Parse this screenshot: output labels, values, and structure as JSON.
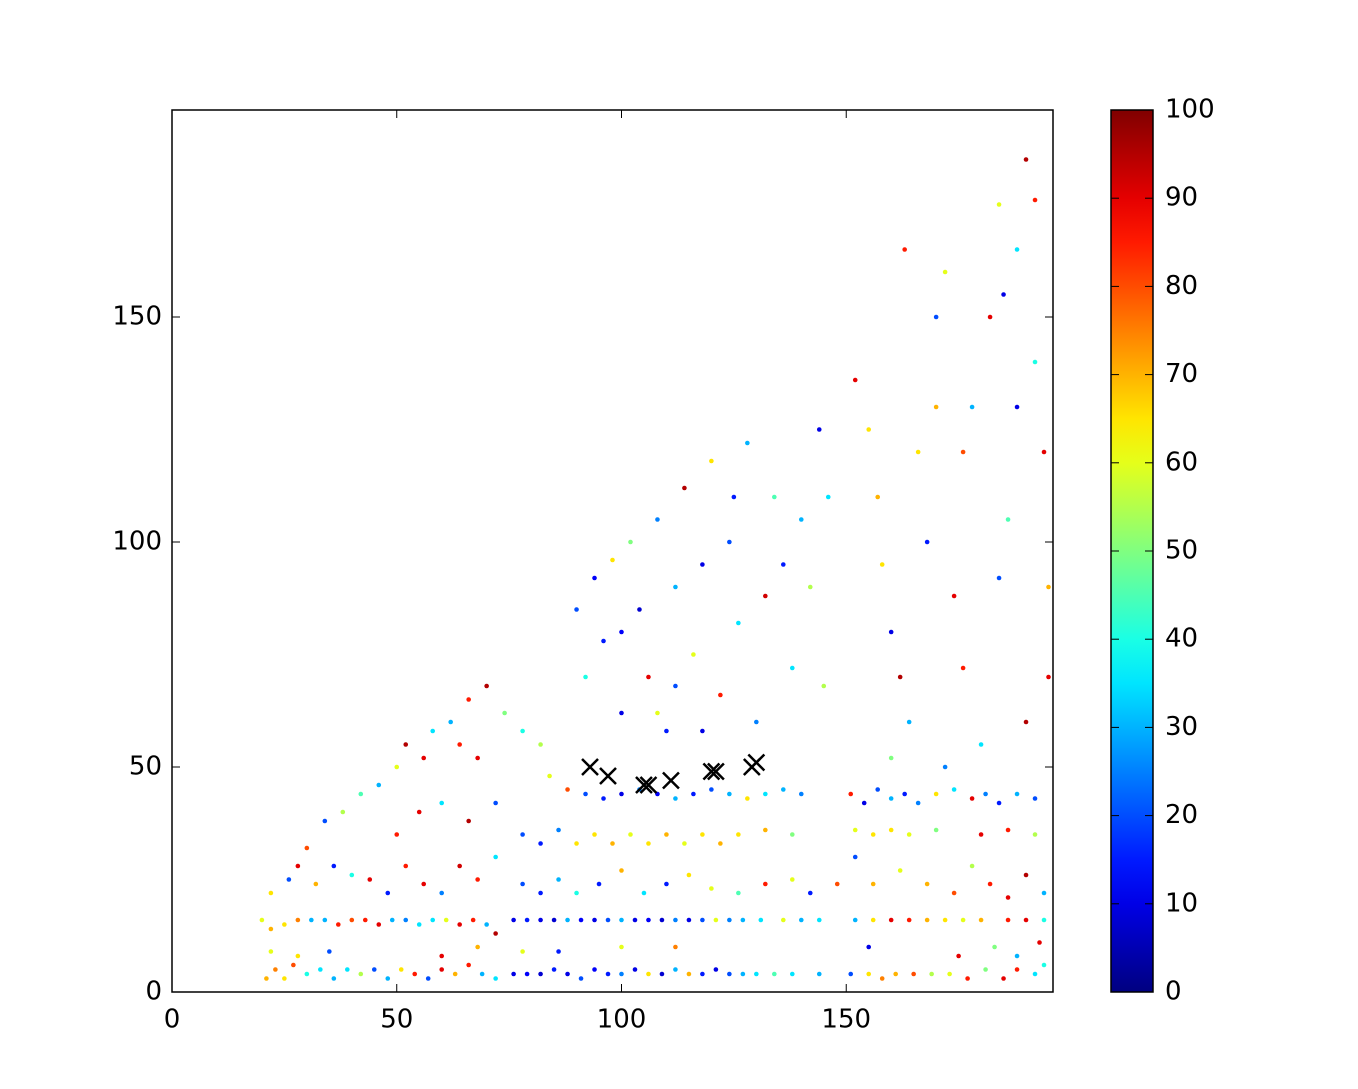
{
  "chart_data": {
    "type": "scatter",
    "colormap": "jet",
    "xlim": [
      0,
      196
    ],
    "ylim": [
      0,
      196
    ],
    "xticks": [
      0,
      50,
      100,
      150
    ],
    "yticks": [
      0,
      50,
      100,
      150
    ],
    "colorbar": {
      "clim": [
        0,
        100
      ],
      "ticks": [
        0,
        10,
        20,
        30,
        40,
        50,
        60,
        70,
        80,
        90,
        100
      ]
    },
    "x": [
      21,
      23,
      25,
      27,
      30,
      33,
      36,
      39,
      42,
      45,
      48,
      51,
      54,
      57,
      60,
      63,
      66,
      69,
      72,
      76,
      79,
      82,
      85,
      88,
      91,
      94,
      97,
      100,
      103,
      106,
      109,
      112,
      115,
      118,
      121,
      124,
      127,
      130,
      134,
      138,
      144,
      151,
      155,
      158,
      161,
      165,
      169,
      173,
      177,
      181,
      185,
      188,
      192,
      194,
      22,
      28,
      35,
      60,
      68,
      78,
      86,
      100,
      112,
      155,
      175,
      183,
      188,
      193,
      20,
      22,
      25,
      28,
      31,
      34,
      37,
      40,
      43,
      46,
      49,
      52,
      55,
      58,
      61,
      64,
      67,
      70,
      72,
      76,
      79,
      82,
      85,
      88,
      91,
      94,
      97,
      100,
      103,
      106,
      109,
      112,
      115,
      118,
      121,
      124,
      127,
      131,
      136,
      140,
      144,
      152,
      156,
      160,
      164,
      168,
      172,
      176,
      180,
      186,
      190,
      194,
      22,
      26,
      28,
      32,
      36,
      40,
      44,
      48,
      52,
      56,
      60,
      64,
      68,
      72,
      78,
      82,
      86,
      90,
      95,
      100,
      105,
      110,
      115,
      120,
      126,
      132,
      138,
      142,
      148,
      152,
      156,
      162,
      168,
      174,
      178,
      182,
      186,
      190,
      194,
      90,
      94,
      98,
      102,
      106,
      110,
      114,
      118,
      122,
      126,
      132,
      138,
      152,
      156,
      160,
      164,
      170,
      180,
      186,
      192,
      78,
      82,
      86,
      88,
      92,
      96,
      100,
      104,
      108,
      112,
      116,
      120,
      124,
      128,
      132,
      136,
      140,
      151,
      154,
      157,
      160,
      163,
      166,
      170,
      174,
      178,
      181,
      184,
      188,
      192,
      30,
      34,
      38,
      42,
      46,
      50,
      52,
      56,
      58,
      62,
      64,
      66,
      68,
      70,
      74,
      78,
      82,
      84,
      50,
      55,
      60,
      66,
      72,
      90,
      92,
      94,
      96,
      98,
      100,
      102,
      104,
      106,
      108,
      110,
      112,
      114,
      116,
      118,
      120,
      122,
      124,
      126,
      128,
      130,
      132,
      134,
      136,
      138,
      140,
      142,
      144,
      146,
      145,
      100,
      112,
      125,
      118,
      108,
      152,
      155,
      157,
      158,
      160,
      162,
      164,
      166,
      168,
      170,
      172,
      174,
      176,
      178,
      180,
      182,
      184,
      186,
      188,
      190,
      192,
      194,
      195,
      195,
      163,
      170,
      176,
      184,
      188,
      190,
      192,
      185,
      160,
      172
    ],
    "y": [
      3,
      5,
      3,
      6,
      4,
      5,
      3,
      5,
      4,
      5,
      3,
      5,
      4,
      3,
      5,
      4,
      6,
      4,
      3,
      4,
      4,
      4,
      5,
      4,
      3,
      5,
      4,
      4,
      5,
      4,
      4,
      5,
      4,
      4,
      5,
      4,
      4,
      4,
      4,
      4,
      4,
      4,
      4,
      3,
      4,
      4,
      4,
      4,
      3,
      5,
      3,
      5,
      4,
      6,
      9,
      8,
      9,
      8,
      10,
      9,
      9,
      10,
      10,
      10,
      8,
      10,
      8,
      11,
      16,
      14,
      15,
      16,
      16,
      16,
      15,
      16,
      16,
      15,
      16,
      16,
      15,
      16,
      16,
      15,
      16,
      15,
      13,
      16,
      16,
      16,
      16,
      16,
      16,
      16,
      16,
      16,
      16,
      16,
      16,
      16,
      16,
      16,
      16,
      16,
      16,
      16,
      16,
      16,
      16,
      16,
      16,
      16,
      16,
      16,
      16,
      16,
      16,
      16,
      16,
      16,
      22,
      25,
      28,
      24,
      28,
      26,
      25,
      22,
      28,
      24,
      22,
      28,
      25,
      30,
      24,
      22,
      25,
      22,
      24,
      27,
      22,
      24,
      26,
      23,
      22,
      24,
      25,
      22,
      24,
      30,
      24,
      27,
      24,
      22,
      28,
      24,
      21,
      26,
      22,
      33,
      35,
      33,
      35,
      33,
      35,
      33,
      35,
      33,
      35,
      36,
      35,
      36,
      35,
      36,
      35,
      36,
      35,
      36,
      35,
      35,
      33,
      36,
      45,
      44,
      43,
      44,
      45,
      44,
      43,
      44,
      45,
      44,
      43,
      44,
      45,
      44,
      44,
      42,
      45,
      43,
      44,
      42,
      44,
      45,
      43,
      44,
      42,
      44,
      43,
      32,
      38,
      40,
      44,
      46,
      50,
      55,
      52,
      58,
      60,
      55,
      65,
      52,
      68,
      62,
      58,
      55,
      48,
      35,
      40,
      42,
      38,
      42,
      85,
      70,
      92,
      78,
      96,
      62,
      100,
      85,
      70,
      105,
      58,
      90,
      112,
      75,
      95,
      118,
      66,
      100,
      82,
      122,
      60,
      88,
      110,
      95,
      72,
      105,
      90,
      125,
      110,
      68,
      80,
      68,
      110,
      58,
      62,
      136,
      125,
      110,
      95,
      80,
      70,
      60,
      120,
      100,
      150,
      160,
      88,
      72,
      130,
      55,
      150,
      175,
      105,
      165,
      185,
      140,
      120,
      90,
      70,
      165,
      130,
      120,
      92,
      130,
      60,
      176,
      155,
      52,
      50
    ],
    "values": [
      70,
      75,
      65,
      80,
      40,
      35,
      30,
      35,
      55,
      20,
      30,
      65,
      85,
      20,
      90,
      70,
      85,
      30,
      35,
      10,
      12,
      8,
      15,
      10,
      20,
      12,
      15,
      25,
      10,
      65,
      8,
      30,
      70,
      15,
      10,
      20,
      30,
      35,
      45,
      35,
      30,
      20,
      65,
      75,
      70,
      80,
      55,
      60,
      85,
      50,
      90,
      85,
      35,
      40,
      60,
      65,
      20,
      90,
      70,
      60,
      15,
      60,
      75,
      10,
      90,
      50,
      30,
      90,
      60,
      70,
      65,
      75,
      30,
      30,
      85,
      80,
      85,
      90,
      30,
      25,
      35,
      35,
      60,
      90,
      85,
      30,
      95,
      10,
      15,
      10,
      8,
      30,
      12,
      10,
      20,
      30,
      10,
      12,
      8,
      25,
      10,
      20,
      60,
      25,
      30,
      35,
      60,
      30,
      35,
      30,
      65,
      90,
      85,
      70,
      65,
      60,
      70,
      85,
      90,
      40,
      65,
      20,
      90,
      70,
      15,
      40,
      90,
      15,
      85,
      90,
      25,
      92,
      85,
      35,
      20,
      15,
      30,
      40,
      15,
      70,
      35,
      15,
      65,
      60,
      45,
      85,
      60,
      15,
      80,
      20,
      70,
      60,
      70,
      80,
      55,
      85,
      90,
      95,
      30,
      65,
      65,
      70,
      60,
      65,
      70,
      60,
      65,
      70,
      65,
      70,
      50,
      60,
      65,
      65,
      60,
      50,
      90,
      85,
      55,
      20,
      15,
      25,
      80,
      20,
      15,
      10,
      25,
      12,
      30,
      15,
      20,
      30,
      65,
      35,
      30,
      25,
      85,
      10,
      20,
      30,
      15,
      25,
      65,
      35,
      90,
      25,
      15,
      30,
      20,
      80,
      20,
      55,
      45,
      30,
      60,
      95,
      90,
      35,
      30,
      85,
      85,
      90,
      95,
      50,
      40,
      55,
      60,
      85,
      90,
      35,
      95,
      20,
      20,
      40,
      12,
      15,
      65,
      10,
      50,
      8,
      90,
      25,
      15,
      30,
      95,
      60,
      10,
      65,
      85,
      20,
      35,
      30,
      25,
      92,
      45,
      15,
      35,
      30,
      55,
      10,
      35,
      55,
      12,
      20,
      15,
      10,
      60,
      90,
      65,
      70,
      65,
      10,
      95,
      30,
      65,
      15,
      20,
      60,
      90,
      85,
      30,
      35,
      90,
      60,
      45,
      35,
      95,
      40,
      90,
      70,
      90,
      85,
      70,
      80,
      20,
      10,
      95,
      85,
      10,
      50,
      25
    ],
    "markers": {
      "color": "#000000",
      "x": [
        93,
        97,
        105,
        106,
        111,
        120,
        121,
        129,
        130
      ],
      "y": [
        50,
        48,
        46,
        46,
        47,
        49,
        49,
        50,
        51
      ]
    }
  }
}
